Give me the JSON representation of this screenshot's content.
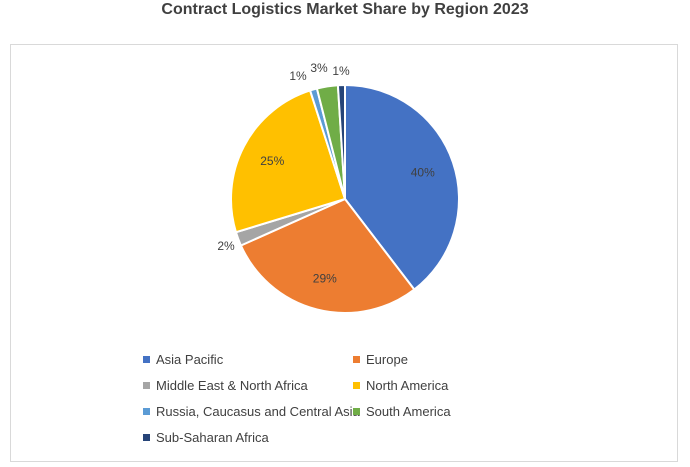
{
  "chart_data": {
    "type": "pie",
    "title": "Contract Logistics Market Share by Region 2023",
    "slices": [
      {
        "name": "Asia Pacific",
        "value": 40,
        "label": "40%",
        "color": "#4472C4"
      },
      {
        "name": "Europe",
        "value": 29,
        "label": "29%",
        "color": "#ED7D31"
      },
      {
        "name": "Middle East & North Africa",
        "value": 2,
        "label": "2%",
        "color": "#A5A5A5"
      },
      {
        "name": "North America",
        "value": 25,
        "label": "25%",
        "color": "#FFC000"
      },
      {
        "name": "Russia, Caucasus and Central Asia",
        "value": 1,
        "label": "1%",
        "color": "#5B9BD5"
      },
      {
        "name": "South America",
        "value": 3,
        "label": "3%",
        "color": "#70AD47"
      },
      {
        "name": "Sub-Saharan Africa",
        "value": 1,
        "label": "1%",
        "color": "#264478"
      }
    ],
    "legend_position": "bottom",
    "grid": false
  }
}
